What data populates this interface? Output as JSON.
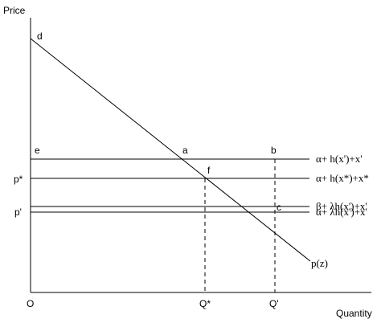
{
  "axes": {
    "y_label": "Price",
    "x_label": "Quantity",
    "origin_label": "O"
  },
  "price_ticks": {
    "p_star": "p*",
    "p_prime": "p'"
  },
  "quantity_ticks": {
    "q_star": "Q*",
    "q_prime": "Q'"
  },
  "points": {
    "d": "d",
    "e": "e",
    "a": "a",
    "b": "b",
    "f": "f",
    "c": "c"
  },
  "curves": {
    "line_1": "α+ h(x')+x'",
    "line_2": "α+ h(x*)+x*",
    "line_3": "β+ λh(x')+x'",
    "line_4": "α+ λh(x')+x'",
    "demand": "p(z)"
  }
}
